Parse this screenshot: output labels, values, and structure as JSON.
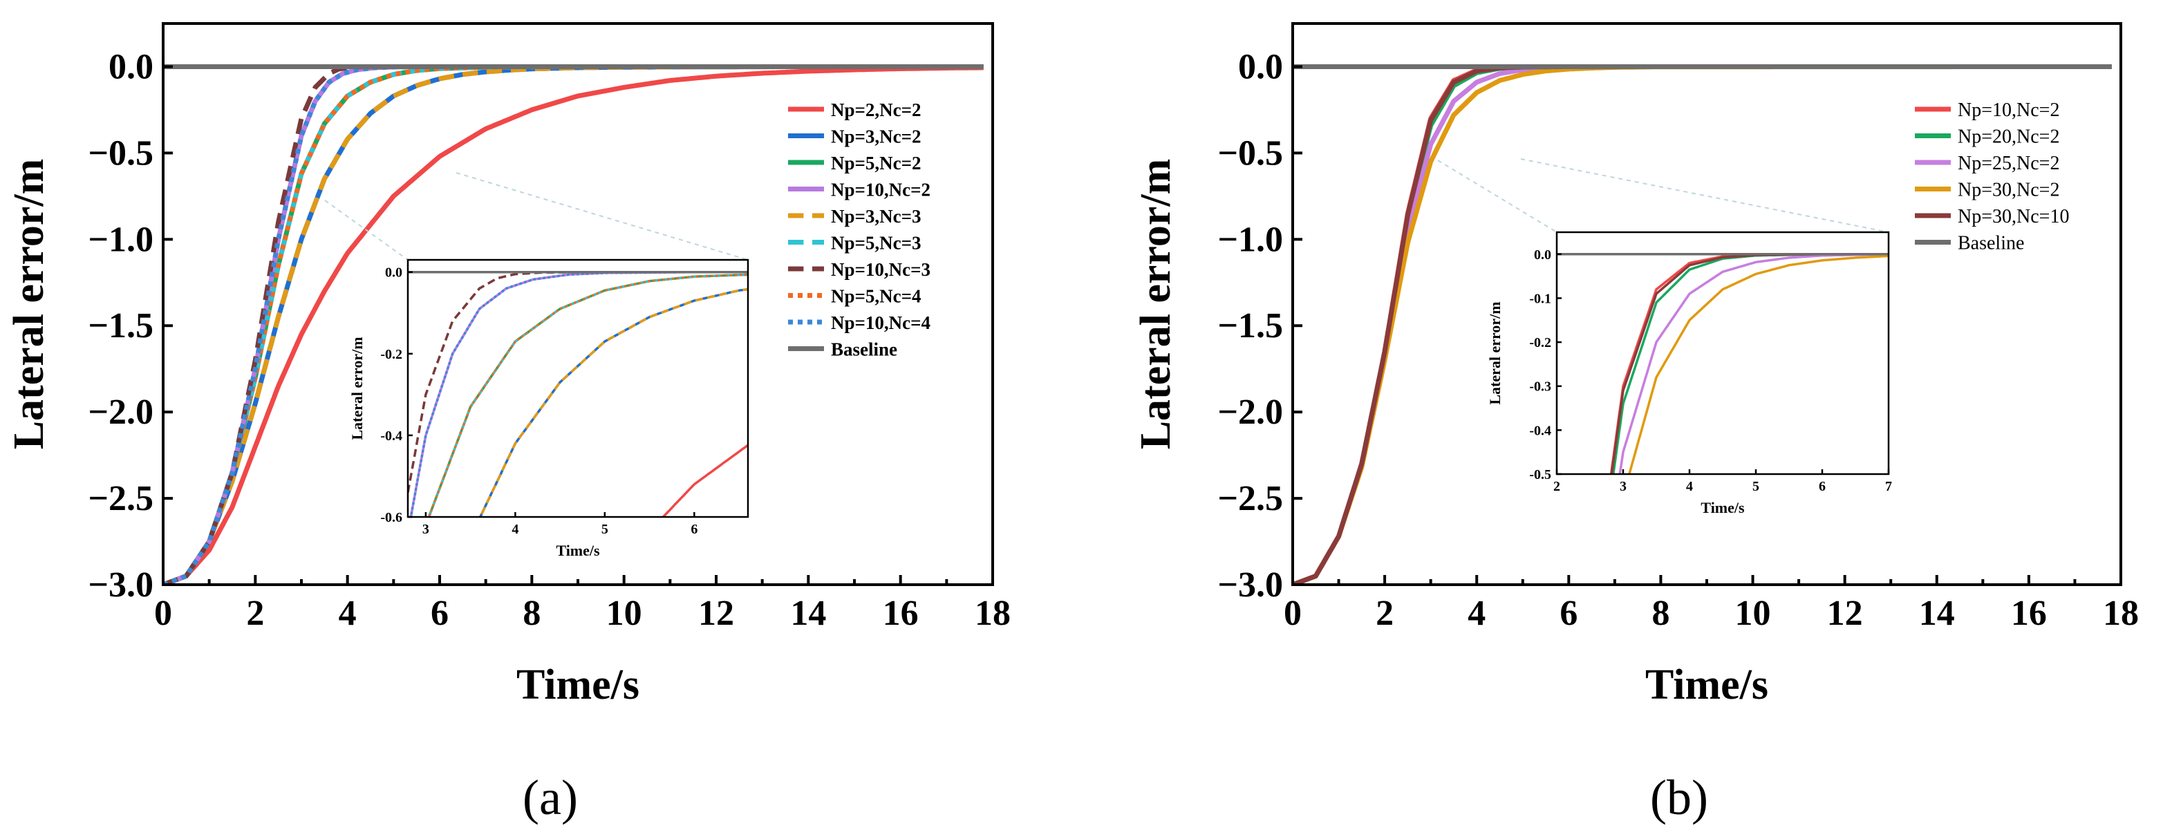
{
  "chart_data": [
    {
      "id": "a",
      "type": "line",
      "caption": "(a)",
      "xlabel": "Time/s",
      "ylabel": "Lateral error/m",
      "xlim": [
        0,
        18
      ],
      "ylim": [
        -3.0,
        0.25
      ],
      "xticks": [
        "0",
        "2",
        "4",
        "6",
        "8",
        "10",
        "12",
        "14",
        "16",
        "18"
      ],
      "yticks": [
        "0.0",
        "−0.5",
        "−1.0",
        "−1.5",
        "−2.0",
        "−2.5",
        "−3.0"
      ],
      "series": [
        {
          "name": "Np=2,Nc=2",
          "color": "#f04848",
          "dash": "solid",
          "x": [
            0,
            0.5,
            1,
            1.5,
            2,
            2.5,
            3,
            3.5,
            4,
            5,
            6,
            7,
            8,
            9,
            10,
            11,
            12,
            13,
            14,
            15,
            16,
            17,
            17.8
          ],
          "y": [
            -3.0,
            -2.95,
            -2.8,
            -2.55,
            -2.2,
            -1.85,
            -1.55,
            -1.3,
            -1.08,
            -0.75,
            -0.52,
            -0.36,
            -0.25,
            -0.17,
            -0.12,
            -0.08,
            -0.055,
            -0.038,
            -0.026,
            -0.018,
            -0.012,
            -0.008,
            -0.006
          ]
        },
        {
          "name": "Np=3,Nc=2",
          "color": "#1f6fd0",
          "dash": "solid",
          "x": [
            0,
            0.5,
            1,
            1.5,
            2,
            2.5,
            3,
            3.5,
            4,
            4.5,
            5,
            5.5,
            6,
            6.5,
            7,
            7.5,
            8,
            9,
            10,
            12,
            14,
            17.8
          ],
          "y": [
            -3.0,
            -2.95,
            -2.75,
            -2.4,
            -1.95,
            -1.45,
            -1.0,
            -0.65,
            -0.42,
            -0.27,
            -0.17,
            -0.11,
            -0.07,
            -0.045,
            -0.03,
            -0.02,
            -0.013,
            -0.006,
            -0.003,
            -0.001,
            0,
            0
          ]
        },
        {
          "name": "Np=5,Nc=2",
          "color": "#1aa860",
          "dash": "solid",
          "x": [
            0,
            0.5,
            1,
            1.5,
            2,
            2.5,
            3,
            3.5,
            4,
            4.5,
            5,
            5.5,
            6,
            7,
            8,
            10,
            17.8
          ],
          "y": [
            -3.0,
            -2.95,
            -2.75,
            -2.35,
            -1.8,
            -1.15,
            -0.62,
            -0.33,
            -0.17,
            -0.09,
            -0.045,
            -0.022,
            -0.011,
            -0.003,
            -0.001,
            0,
            0
          ]
        },
        {
          "name": "Np=10,Nc=2",
          "color": "#b77ae0",
          "dash": "solid",
          "x": [
            0,
            0.5,
            1,
            1.5,
            2,
            2.5,
            3,
            3.3,
            3.6,
            3.9,
            4.2,
            4.6,
            5,
            6,
            17.8
          ],
          "y": [
            -3.0,
            -2.95,
            -2.75,
            -2.35,
            -1.75,
            -1.0,
            -0.4,
            -0.2,
            -0.09,
            -0.04,
            -0.018,
            -0.006,
            -0.002,
            0,
            0
          ]
        },
        {
          "name": "Np=3,Nc=3",
          "color": "#e09a18",
          "dash": "dash",
          "x": [
            0,
            0.5,
            1,
            1.5,
            2,
            2.5,
            3,
            3.5,
            4,
            4.5,
            5,
            5.5,
            6,
            6.5,
            7,
            7.5,
            8,
            9,
            10,
            12,
            14,
            17.8
          ],
          "y": [
            -3.0,
            -2.95,
            -2.75,
            -2.4,
            -1.95,
            -1.45,
            -1.0,
            -0.65,
            -0.42,
            -0.27,
            -0.17,
            -0.11,
            -0.07,
            -0.045,
            -0.03,
            -0.02,
            -0.013,
            -0.006,
            -0.003,
            -0.001,
            0,
            0
          ]
        },
        {
          "name": "Np=5,Nc=3",
          "color": "#2ec4d4",
          "dash": "dash",
          "x": [
            0,
            0.5,
            1,
            1.5,
            2,
            2.5,
            3,
            3.5,
            4,
            4.5,
            5,
            5.5,
            6,
            7,
            8,
            10,
            17.8
          ],
          "y": [
            -3.0,
            -2.95,
            -2.75,
            -2.35,
            -1.8,
            -1.15,
            -0.62,
            -0.33,
            -0.17,
            -0.09,
            -0.045,
            -0.022,
            -0.011,
            -0.003,
            -0.001,
            0,
            0
          ]
        },
        {
          "name": "Np=10,Nc=3",
          "color": "#7a3a3a",
          "dash": "dash",
          "x": [
            0,
            0.5,
            1,
            1.5,
            2,
            2.5,
            3,
            3.3,
            3.6,
            3.8,
            4.0,
            4.3,
            5,
            17.8
          ],
          "y": [
            -3.0,
            -2.95,
            -2.75,
            -2.35,
            -1.7,
            -0.9,
            -0.3,
            -0.12,
            -0.04,
            -0.015,
            -0.005,
            -0.001,
            0,
            0
          ]
        },
        {
          "name": "Np=5,Nc=4",
          "color": "#f06a20",
          "dash": "dot",
          "x": [
            0,
            0.5,
            1,
            1.5,
            2,
            2.5,
            3,
            3.5,
            4,
            4.5,
            5,
            5.5,
            6,
            7,
            8,
            10,
            17.8
          ],
          "y": [
            -3.0,
            -2.95,
            -2.75,
            -2.35,
            -1.8,
            -1.15,
            -0.62,
            -0.33,
            -0.17,
            -0.09,
            -0.045,
            -0.022,
            -0.011,
            -0.003,
            -0.001,
            0,
            0
          ]
        },
        {
          "name": "Np=10,Nc=4",
          "color": "#3a88d8",
          "dash": "dot",
          "x": [
            0,
            0.5,
            1,
            1.5,
            2,
            2.5,
            3,
            3.3,
            3.6,
            3.9,
            4.2,
            4.6,
            5,
            6,
            17.8
          ],
          "y": [
            -3.0,
            -2.95,
            -2.75,
            -2.35,
            -1.75,
            -1.0,
            -0.4,
            -0.2,
            -0.09,
            -0.04,
            -0.018,
            -0.006,
            -0.002,
            0,
            0
          ]
        },
        {
          "name": "Baseline",
          "color": "#6e6e6e",
          "dash": "solid",
          "x": [
            0,
            17.8
          ],
          "y": [
            0,
            0
          ]
        }
      ],
      "inset": {
        "xlabel": "Time/s",
        "ylabel": "Lateral error/m",
        "xlim": [
          2.8,
          6.6
        ],
        "ylim": [
          -0.6,
          0.03
        ],
        "xticks": [
          "3",
          "4",
          "5",
          "6"
        ],
        "yticks": [
          "0.0",
          "-0.2",
          "-0.4",
          "-0.6"
        ]
      }
    },
    {
      "id": "b",
      "type": "line",
      "caption": "(b)",
      "xlabel": "Time/s",
      "ylabel": "Lateral error/m",
      "xlim": [
        0,
        18
      ],
      "ylim": [
        -3.0,
        0.25
      ],
      "xticks": [
        "0",
        "2",
        "4",
        "6",
        "8",
        "10",
        "12",
        "14",
        "16",
        "18"
      ],
      "yticks": [
        "0.0",
        "−0.5",
        "−1.0",
        "−1.5",
        "−2.0",
        "−2.5",
        "−3.0"
      ],
      "series": [
        {
          "name": "Np=10,Nc=2",
          "color": "#f04848",
          "dash": "solid",
          "x": [
            0,
            0.5,
            1,
            1.5,
            2,
            2.5,
            3,
            3.5,
            4,
            4.5,
            5,
            6,
            17.8
          ],
          "y": [
            -3.0,
            -2.95,
            -2.72,
            -2.3,
            -1.65,
            -0.85,
            -0.3,
            -0.08,
            -0.02,
            -0.005,
            -0.001,
            0,
            0
          ]
        },
        {
          "name": "Np=20,Nc=2",
          "color": "#1aa860",
          "dash": "solid",
          "x": [
            0,
            0.5,
            1,
            1.5,
            2,
            2.5,
            3,
            3.5,
            4,
            4.5,
            5,
            6,
            17.8
          ],
          "y": [
            -3.0,
            -2.95,
            -2.72,
            -2.3,
            -1.65,
            -0.88,
            -0.34,
            -0.11,
            -0.035,
            -0.01,
            -0.003,
            0,
            0
          ]
        },
        {
          "name": "Np=25,Nc=2",
          "color": "#c77ee0",
          "dash": "solid",
          "x": [
            0,
            0.5,
            1,
            1.5,
            2,
            2.5,
            3,
            3.5,
            4,
            4.5,
            5,
            5.5,
            6,
            7,
            17.8
          ],
          "y": [
            -3.0,
            -2.95,
            -2.72,
            -2.3,
            -1.67,
            -0.95,
            -0.45,
            -0.2,
            -0.09,
            -0.04,
            -0.018,
            -0.008,
            -0.003,
            0,
            0
          ]
        },
        {
          "name": "Np=30,Nc=2",
          "color": "#e09a10",
          "dash": "solid",
          "x": [
            0,
            0.5,
            1,
            1.5,
            2,
            2.5,
            3,
            3.5,
            4,
            4.5,
            5,
            5.5,
            6,
            6.5,
            7,
            8,
            17.8
          ],
          "y": [
            -3.0,
            -2.95,
            -2.72,
            -2.32,
            -1.7,
            -1.02,
            -0.55,
            -0.28,
            -0.15,
            -0.08,
            -0.045,
            -0.025,
            -0.014,
            -0.008,
            -0.004,
            -0.001,
            0
          ]
        },
        {
          "name": "Np=30,Nc=10",
          "color": "#8a3a3a",
          "dash": "solid",
          "x": [
            0,
            0.5,
            1,
            1.5,
            2,
            2.5,
            3,
            3.5,
            4,
            4.5,
            5,
            6,
            17.8
          ],
          "y": [
            -3.0,
            -2.95,
            -2.72,
            -2.3,
            -1.65,
            -0.86,
            -0.31,
            -0.09,
            -0.025,
            -0.007,
            -0.002,
            0,
            0
          ]
        },
        {
          "name": "Baseline",
          "color": "#6e6e6e",
          "dash": "solid",
          "x": [
            0,
            17.8
          ],
          "y": [
            0,
            0
          ]
        }
      ],
      "inset": {
        "xlabel": "Time/s",
        "ylabel": "Lateral error/m",
        "xlim": [
          2,
          7
        ],
        "ylim": [
          -0.5,
          0.05
        ],
        "xticks": [
          "2",
          "3",
          "4",
          "5",
          "6",
          "7"
        ],
        "yticks": [
          "0.0",
          "-0.1",
          "-0.2",
          "-0.3",
          "-0.4",
          "-0.5"
        ]
      }
    }
  ]
}
